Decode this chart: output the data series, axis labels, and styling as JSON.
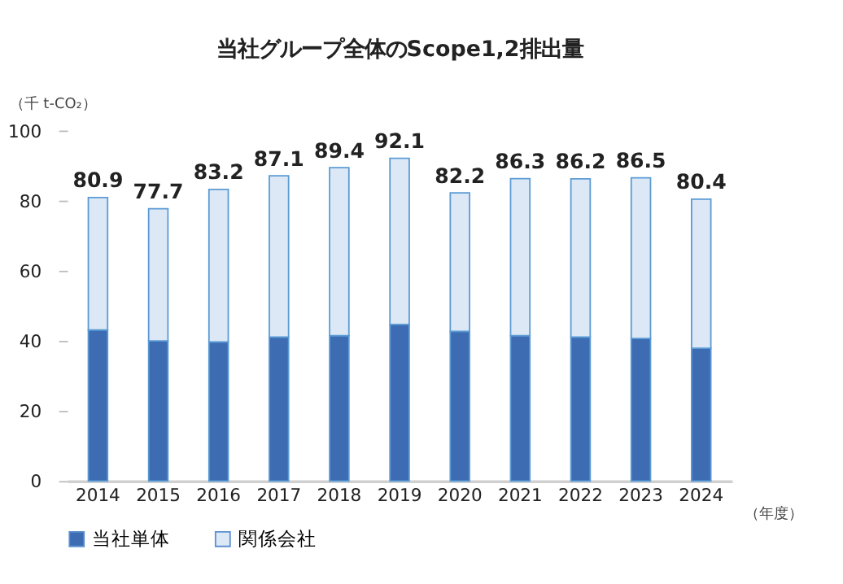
{
  "chart_data": {
    "type": "bar",
    "stacked": true,
    "title": "当社グループ全体のScope1,2排出量",
    "xlabel": "（年度）",
    "ylabel": "（千 t-CO₂）",
    "categories": [
      "2014",
      "2015",
      "2016",
      "2017",
      "2018",
      "2019",
      "2020",
      "2021",
      "2022",
      "2023",
      "2024"
    ],
    "series": [
      {
        "name": "当社単体",
        "color": "#3d6cb3",
        "values": [
          43.1,
          40.0,
          39.7,
          41.1,
          41.5,
          44.7,
          42.7,
          41.5,
          41.1,
          40.7,
          37.9
        ]
      },
      {
        "name": "関係会社",
        "color": "#dce8f5",
        "values": [
          37.8,
          37.7,
          43.5,
          46.0,
          47.9,
          47.4,
          39.5,
          44.8,
          45.1,
          45.8,
          42.5
        ]
      }
    ],
    "totals": [
      "80.9",
      "77.7",
      "83.2",
      "87.1",
      "89.4",
      "92.1",
      "82.2",
      "86.3",
      "86.2",
      "86.5",
      "80.4"
    ],
    "ylim": [
      0,
      100
    ],
    "yticks": [
      0,
      20,
      40,
      60,
      80,
      100
    ],
    "legend": "bottom"
  }
}
